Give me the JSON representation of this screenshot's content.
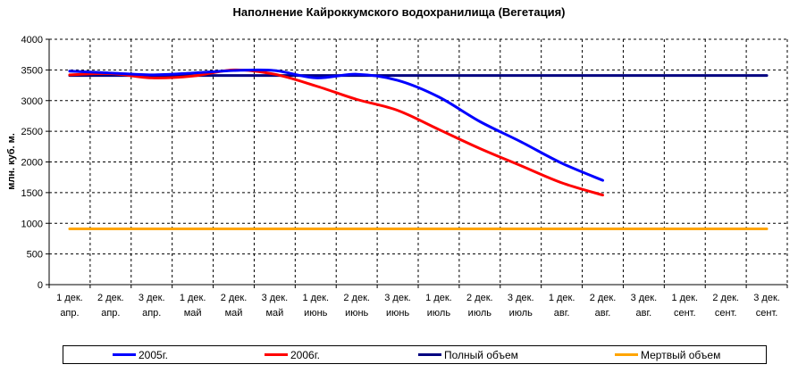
{
  "chart_data": {
    "type": "line",
    "title": "Наполнение Кайроккумского водохранилища (Вегетация)",
    "ylabel": "млн. куб. м.",
    "xlabel": "",
    "ylim": [
      0,
      4000
    ],
    "yticks": [
      0,
      500,
      1000,
      1500,
      2000,
      2500,
      3000,
      3500,
      4000
    ],
    "grid": true,
    "legend_position": "bottom",
    "categories": [
      [
        "1 дек.",
        "апр."
      ],
      [
        "2 дек.",
        "апр."
      ],
      [
        "3 дек.",
        "апр."
      ],
      [
        "1 дек.",
        "май"
      ],
      [
        "2 дек.",
        "май"
      ],
      [
        "3 дек.",
        "май"
      ],
      [
        "1 дек.",
        "июнь"
      ],
      [
        "2 дек.",
        "июнь"
      ],
      [
        "3 дек.",
        "июнь"
      ],
      [
        "1 дек.",
        "июль"
      ],
      [
        "2 дек.",
        "июль"
      ],
      [
        "3 дек.",
        "июль"
      ],
      [
        "1 дек.",
        "авг."
      ],
      [
        "2 дек.",
        "авг."
      ],
      [
        "3 дек.",
        "авг."
      ],
      [
        "1 дек.",
        "сент."
      ],
      [
        "2 дек.",
        "сент."
      ],
      [
        "3 дек.",
        "сент."
      ]
    ],
    "series": [
      {
        "name": "2005г.",
        "color": "#0000ff",
        "values": [
          3480,
          3450,
          3420,
          3450,
          3490,
          3490,
          3370,
          3430,
          3330,
          3060,
          2660,
          2330,
          1980,
          1700,
          null,
          null,
          null,
          null
        ]
      },
      {
        "name": "2006г.",
        "color": "#ff0000",
        "values": [
          3420,
          3440,
          3370,
          3400,
          3500,
          3430,
          3240,
          3020,
          2840,
          2530,
          2220,
          1940,
          1660,
          1460,
          null,
          null,
          null,
          null
        ]
      },
      {
        "name": "Полный объем",
        "color": "#000080",
        "values": [
          3410,
          3410,
          3410,
          3410,
          3410,
          3410,
          3410,
          3410,
          3410,
          3410,
          3410,
          3410,
          3410,
          3410,
          3410,
          3410,
          3410,
          3410
        ]
      },
      {
        "name": "Мертвый объем",
        "color": "#ffa500",
        "values": [
          910,
          910,
          910,
          910,
          910,
          910,
          910,
          910,
          910,
          910,
          910,
          910,
          910,
          910,
          910,
          910,
          910,
          910
        ]
      }
    ]
  }
}
